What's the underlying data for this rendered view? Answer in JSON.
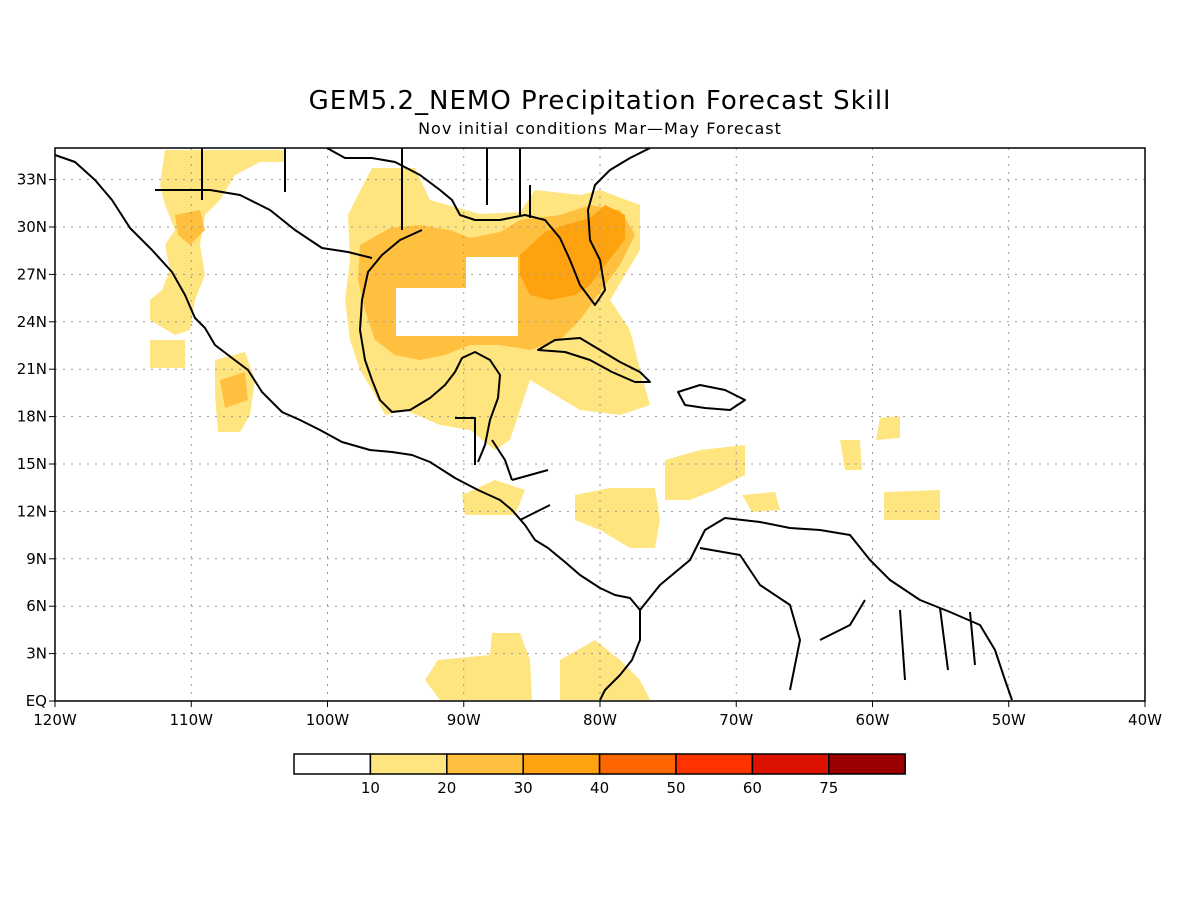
{
  "title": "GEM5.2_NEMO Precipitation Forecast Skill",
  "subtitle": "Nov initial conditions  Mar—May Forecast",
  "map": {
    "lon_range": [
      -120,
      -40
    ],
    "lat_range": [
      0,
      35
    ],
    "x_ticks": [
      {
        "lon": -120,
        "label": "120W"
      },
      {
        "lon": -110,
        "label": "110W"
      },
      {
        "lon": -100,
        "label": "100W"
      },
      {
        "lon": -90,
        "label": "90W"
      },
      {
        "lon": -80,
        "label": "80W"
      },
      {
        "lon": -70,
        "label": "70W"
      },
      {
        "lon": -60,
        "label": "60W"
      },
      {
        "lon": -50,
        "label": "50W"
      },
      {
        "lon": -40,
        "label": "40W"
      }
    ],
    "y_ticks": [
      {
        "lat": 0,
        "label": "EQ"
      },
      {
        "lat": 3,
        "label": "3N"
      },
      {
        "lat": 6,
        "label": "6N"
      },
      {
        "lat": 9,
        "label": "9N"
      },
      {
        "lat": 12,
        "label": "12N"
      },
      {
        "lat": 15,
        "label": "15N"
      },
      {
        "lat": 18,
        "label": "18N"
      },
      {
        "lat": 21,
        "label": "21N"
      },
      {
        "lat": 24,
        "label": "24N"
      },
      {
        "lat": 27,
        "label": "27N"
      },
      {
        "lat": 30,
        "label": "30N"
      },
      {
        "lat": 33,
        "label": "33N"
      }
    ],
    "grid": true,
    "colors": {
      "land_outline": "#000000",
      "gridline": "#999999"
    }
  },
  "legend": {
    "bins": [
      {
        "color": "#ffffff"
      },
      {
        "color": "#ffe57f"
      },
      {
        "color": "#ffc040"
      },
      {
        "color": "#ffa20f"
      },
      {
        "color": "#ff6600"
      },
      {
        "color": "#ff3300"
      },
      {
        "color": "#dd1100"
      },
      {
        "color": "#9a0000"
      }
    ],
    "labels": [
      "10",
      "20",
      "30",
      "40",
      "50",
      "60",
      "75"
    ]
  }
}
